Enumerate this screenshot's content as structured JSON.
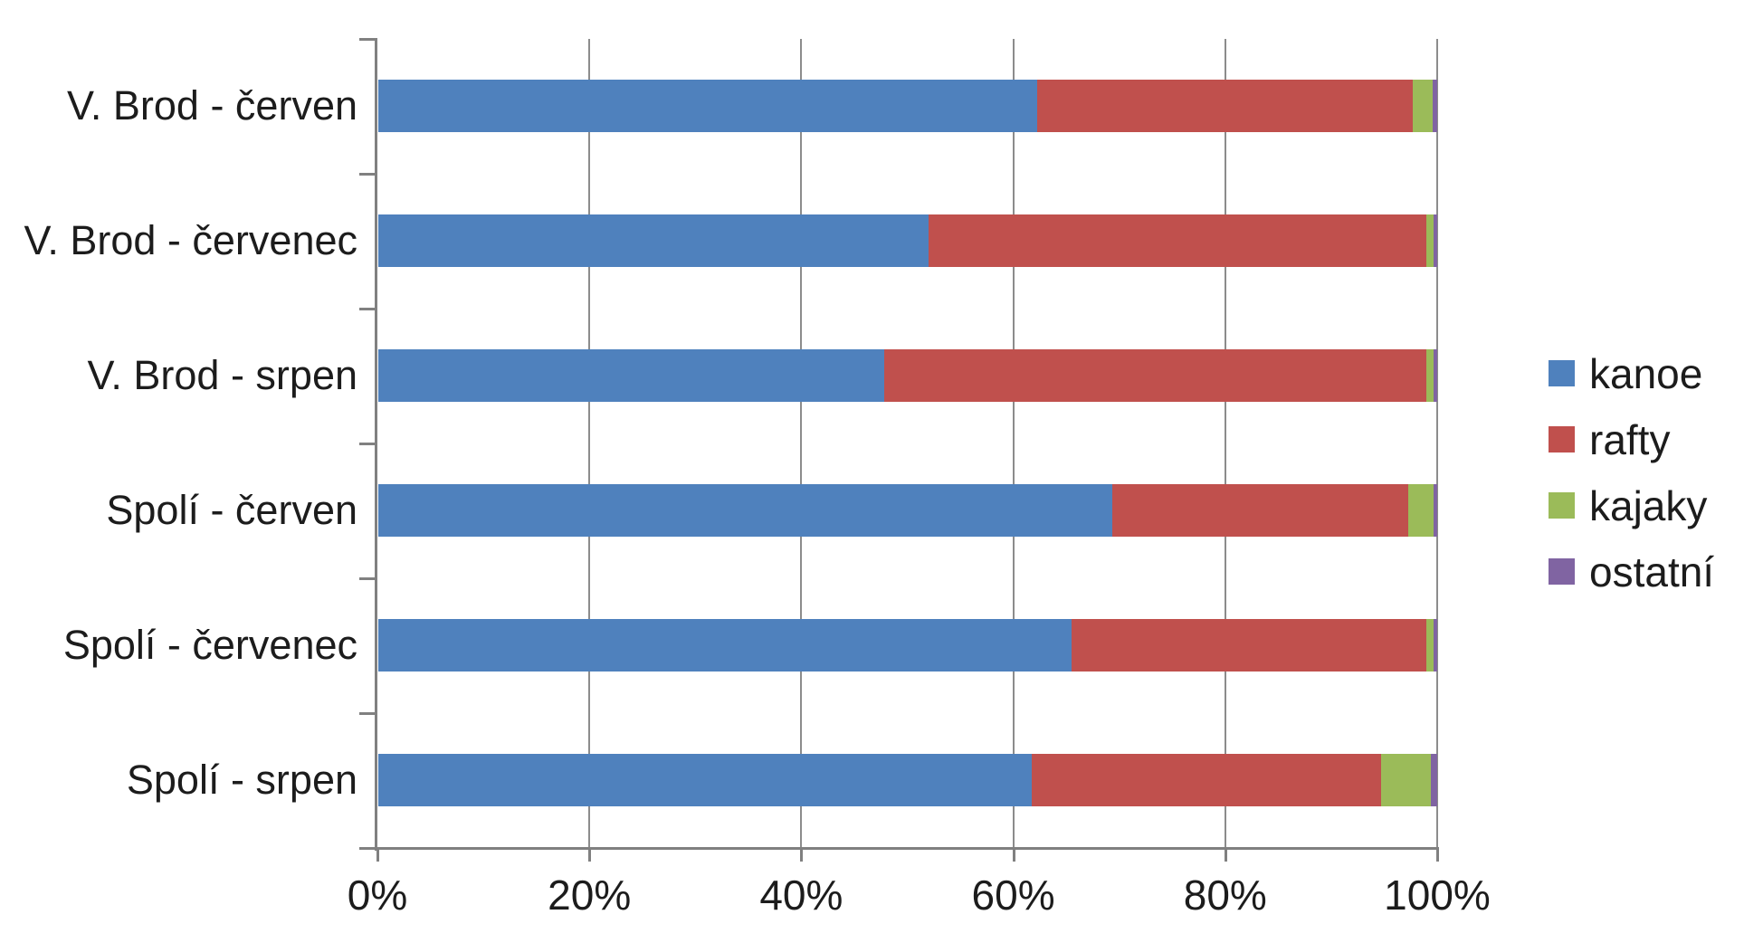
{
  "chart_data": {
    "type": "bar",
    "subtype": "horizontal-stacked-100",
    "title": "",
    "categories": [
      "V. Brod - červen",
      "V. Brod - červenec",
      "V. Brod - srpen",
      "Spolí - červen",
      "Spolí - červenec",
      "Spolí - srpen"
    ],
    "series": [
      {
        "name": "kanoe",
        "color": "#4F81BD",
        "values": [
          62.2,
          52.0,
          47.8,
          69.3,
          65.5,
          61.7
        ]
      },
      {
        "name": "rafty",
        "color": "#C0504D",
        "values": [
          35.5,
          47.0,
          51.2,
          28.0,
          33.5,
          33.0
        ]
      },
      {
        "name": "kajaky",
        "color": "#9BBB59",
        "values": [
          1.9,
          0.7,
          0.7,
          2.4,
          0.7,
          4.7
        ]
      },
      {
        "name": "ostatní",
        "color": "#8064A2",
        "values": [
          0.4,
          0.3,
          0.3,
          0.3,
          0.3,
          0.6
        ]
      }
    ],
    "x_axis": {
      "min": 0,
      "max": 100,
      "unit": "%",
      "tick_labels": [
        "0%",
        "20%",
        "40%",
        "60%",
        "80%",
        "100%"
      ],
      "grid": true
    },
    "legend": {
      "position": "right",
      "entries": [
        "kanoe",
        "rafty",
        "kajaky",
        "ostatní"
      ]
    }
  },
  "styles": {
    "axis_color": "#808080",
    "gridline_color": "#8C8C8C",
    "text_color": "#1C1C1C",
    "background": "#FFFFFF"
  }
}
